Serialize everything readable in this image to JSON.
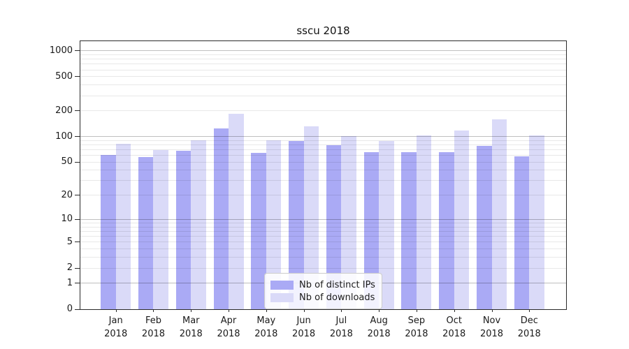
{
  "chart_data": {
    "type": "bar",
    "title": "sscu 2018",
    "yscale": "log1p",
    "grid": true,
    "year_label": "2018",
    "categories": [
      "Jan",
      "Feb",
      "Mar",
      "Apr",
      "May",
      "Jun",
      "Jul",
      "Aug",
      "Sep",
      "Oct",
      "Nov",
      "Dec"
    ],
    "yticks": [
      1000,
      500,
      200,
      100,
      50,
      20,
      10,
      5,
      2,
      1,
      0
    ],
    "ylim": [
      0,
      1290
    ],
    "series": [
      {
        "name": "Nb of distinct IPs",
        "color": "#aaaaf5",
        "values": [
          61,
          57,
          68,
          125,
          65,
          89,
          80,
          66,
          66,
          66,
          78,
          59
        ]
      },
      {
        "name": "Nb of downloads",
        "color": "#dadaf8",
        "values": [
          83,
          70,
          90,
          184,
          91,
          132,
          102,
          89,
          103,
          118,
          158,
          103
        ]
      }
    ],
    "legend": {
      "position": "lower center",
      "entries": [
        "Nb of distinct IPs",
        "Nb of downloads"
      ]
    }
  }
}
